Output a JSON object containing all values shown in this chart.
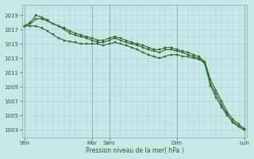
{
  "background_color": "#c8e8e8",
  "grid_color": "#aacccc",
  "line_color": "#2d6a2d",
  "marker_color": "#2d6a2d",
  "xlabel": "Pression niveau de la mer( hPa )",
  "ylim": [
    1002,
    1020.5
  ],
  "yticks": [
    1003,
    1005,
    1007,
    1009,
    1011,
    1013,
    1015,
    1017,
    1019
  ],
  "xtick_labels": [
    "Ven",
    "Mar",
    "Sam",
    "Dim",
    "Lun"
  ],
  "n_points": 40,
  "series1": [
    1017.5,
    1018.0,
    1019.0,
    1018.7,
    1018.3,
    1017.8,
    1017.5,
    1017.2,
    1016.8,
    1016.5,
    1016.2,
    1016.0,
    1015.8,
    1015.5,
    1015.5,
    1015.8,
    1016.0,
    1015.8,
    1015.5,
    1015.2,
    1015.0,
    1014.8,
    1014.5,
    1014.2,
    1014.2,
    1014.5,
    1014.5,
    1014.2,
    1014.0,
    1013.8,
    1013.5,
    1013.2,
    1012.5,
    1010.0,
    1008.5,
    1007.0,
    1005.5,
    1004.5,
    1003.8,
    1003.2
  ],
  "series2": [
    1017.5,
    1017.8,
    1018.5,
    1018.5,
    1018.2,
    1017.8,
    1017.5,
    1017.0,
    1016.5,
    1016.2,
    1016.0,
    1015.8,
    1015.5,
    1015.2,
    1015.2,
    1015.5,
    1015.8,
    1015.5,
    1015.2,
    1015.0,
    1014.8,
    1014.5,
    1014.2,
    1014.0,
    1013.8,
    1014.2,
    1014.2,
    1014.0,
    1013.8,
    1013.5,
    1013.2,
    1013.0,
    1012.2,
    1009.2,
    1007.5,
    1006.2,
    1005.0,
    1004.2,
    1003.5,
    1003.0
  ],
  "series3": [
    1017.5,
    1017.5,
    1017.5,
    1017.2,
    1016.8,
    1016.3,
    1015.8,
    1015.5,
    1015.3,
    1015.2,
    1015.0,
    1015.0,
    1015.0,
    1015.0,
    1014.8,
    1015.0,
    1015.2,
    1015.0,
    1014.8,
    1014.5,
    1014.2,
    1013.8,
    1013.5,
    1013.2,
    1013.0,
    1013.3,
    1013.5,
    1013.5,
    1013.3,
    1013.2,
    1013.0,
    1012.8,
    1012.5,
    1009.5,
    1008.0,
    1006.5,
    1005.2,
    1004.0,
    1003.5,
    1003.0
  ],
  "day_x_positions": [
    0,
    12,
    15,
    27,
    39
  ],
  "day_labels": [
    "Ven",
    "Mar",
    "Sam",
    "Dim",
    "Lun"
  ]
}
